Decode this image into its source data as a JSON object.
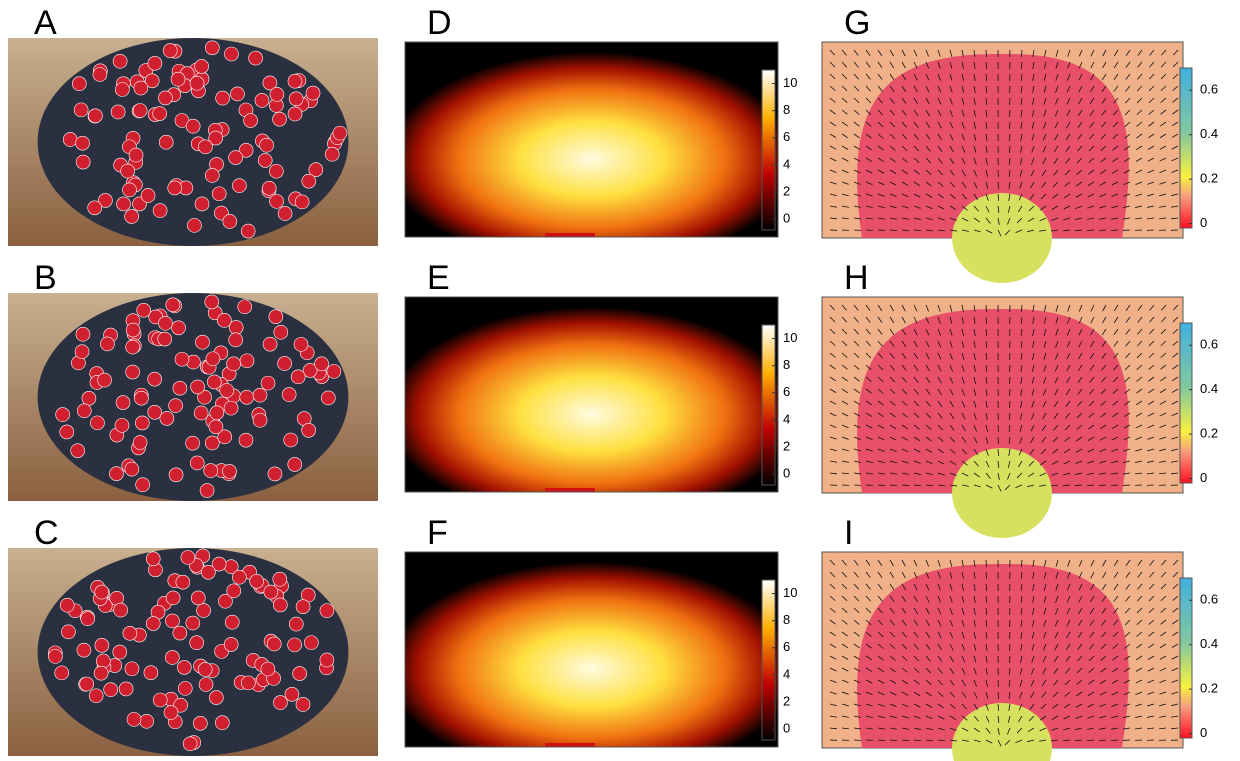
{
  "panels": [
    {
      "label": "A",
      "kind": "photo"
    },
    {
      "label": "D",
      "kind": "density",
      "cticks": [
        0,
        2,
        4,
        6,
        8,
        10
      ],
      "clim": [
        -0.8,
        11
      ]
    },
    {
      "label": "G",
      "kind": "speed",
      "cticks": [
        0,
        0.2,
        0.4,
        0.6
      ],
      "clim": [
        -0.02,
        0.7
      ]
    },
    {
      "label": "B",
      "kind": "photo"
    },
    {
      "label": "E",
      "kind": "density",
      "cticks": [
        0,
        2,
        4,
        6,
        8,
        10
      ],
      "clim": [
        -0.8,
        11
      ]
    },
    {
      "label": "H",
      "kind": "speed",
      "cticks": [
        0,
        0.2,
        0.4,
        0.6
      ],
      "clim": [
        -0.02,
        0.7
      ]
    },
    {
      "label": "C",
      "kind": "photo"
    },
    {
      "label": "F",
      "kind": "density",
      "cticks": [
        0,
        2,
        4,
        6,
        8,
        10
      ],
      "clim": [
        -0.8,
        11
      ]
    },
    {
      "label": "I",
      "kind": "speed",
      "cticks": [
        0,
        0.2,
        0.4,
        0.6
      ],
      "clim": [
        -0.02,
        0.7
      ]
    }
  ]
}
